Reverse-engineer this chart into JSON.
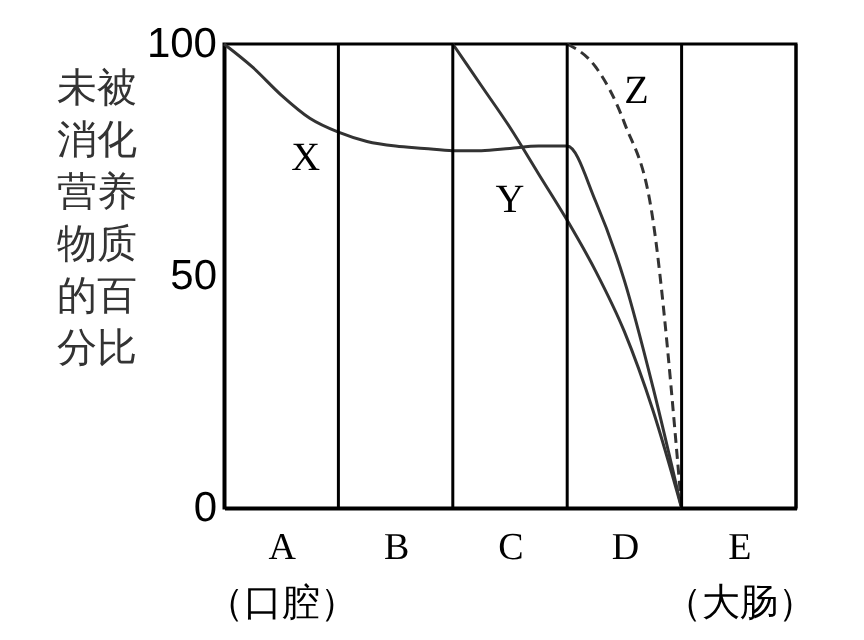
{
  "chart_data": {
    "type": "line",
    "ylabel": "未被消化营养物质的百分比",
    "categories": [
      null,
      null,
      "A\n（口腔）",
      null,
      null,
      null,
      "B",
      null,
      null,
      null,
      "C",
      null,
      null,
      null,
      "D",
      null,
      null,
      null,
      "E\n（大肠）",
      null,
      null
    ],
    "ylim": [
      0,
      100
    ],
    "yticks": [
      0,
      50,
      100
    ],
    "grid": "x",
    "series": [
      {
        "name": "X",
        "color": "#333333",
        "line_style": "solid",
        "values": [
          100,
          95,
          89,
          84,
          81,
          79,
          78,
          77.5,
          77,
          77,
          77.5,
          78,
          78,
          66,
          49,
          26,
          0,
          null,
          null,
          null,
          null
        ]
      },
      {
        "name": "Y",
        "color": "#333333",
        "line_style": "solid",
        "values": [
          null,
          null,
          null,
          null,
          null,
          null,
          null,
          null,
          100,
          91,
          82,
          72,
          62,
          51,
          38,
          21,
          0,
          null,
          null,
          null,
          null
        ]
      },
      {
        "name": "Z",
        "color": "#333333",
        "line_style": "dashed",
        "values": [
          null,
          null,
          null,
          null,
          null,
          null,
          null,
          null,
          null,
          null,
          null,
          null,
          100,
          95,
          83,
          62,
          0,
          null,
          null,
          null,
          null
        ]
      }
    ]
  }
}
